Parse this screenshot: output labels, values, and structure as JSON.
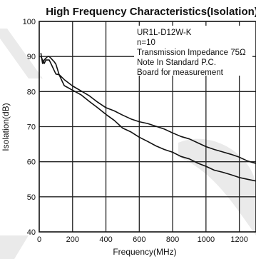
{
  "chart_data": {
    "type": "line",
    "title": "High Frequency Characteristics(Isolation)",
    "xlabel": "Frequency(MHz)",
    "ylabel": "Isolation(dB)",
    "xlim": [
      0,
      1300
    ],
    "ylim": [
      40,
      100
    ],
    "x_ticks": [
      0,
      200,
      400,
      600,
      800,
      1000,
      1200
    ],
    "y_ticks": [
      40,
      50,
      60,
      70,
      80,
      90,
      100
    ],
    "x_ticks_labels": [
      "0",
      "200",
      "400",
      "600",
      "800",
      "1000",
      "1200"
    ],
    "y_ticks_labels": [
      "40",
      "50",
      "60",
      "70",
      "80",
      "90",
      "100"
    ],
    "grid": true,
    "annotations": [
      "UR1L-D12W-K",
      "n=10",
      "Transmission Impedance 75Ω",
      "Note In Standard P.C.",
      "Board for measurement"
    ],
    "series": [
      {
        "x": [
          10,
          20,
          30,
          40,
          50,
          60,
          70,
          80,
          90,
          100,
          120,
          150,
          200,
          250,
          300,
          350,
          400,
          450,
          500,
          550,
          600,
          650,
          700,
          750,
          800,
          850,
          900,
          950,
          1000,
          1050,
          1100,
          1150,
          1200,
          1250,
          1300
        ],
        "y": [
          90,
          89,
          88,
          89,
          89,
          89,
          88,
          87,
          86,
          85,
          84.8,
          83.4,
          81.6,
          80.2,
          78.8,
          77,
          75.4,
          74.5,
          73.3,
          72.2,
          71.4,
          70.9,
          70.1,
          69.3,
          68.2,
          67.2,
          66.5,
          65.4,
          64.3,
          63.5,
          62.8,
          62.1,
          61.3,
          60.2,
          59.5
        ]
      },
      {
        "x": [
          10,
          20,
          30,
          40,
          50,
          60,
          70,
          80,
          90,
          100,
          120,
          150,
          200,
          250,
          300,
          350,
          400,
          450,
          500,
          550,
          600,
          650,
          700,
          750,
          800,
          850,
          900,
          950,
          1000,
          1050,
          1100,
          1150,
          1200,
          1250,
          1300
        ],
        "y": [
          91,
          88,
          89,
          89.5,
          90,
          90,
          89.5,
          89,
          88.5,
          87.8,
          84.7,
          81.7,
          80.4,
          79.1,
          77.2,
          75.4,
          73.5,
          71.8,
          69.6,
          68.5,
          67,
          65.8,
          64.5,
          63.5,
          62.7,
          61.5,
          60.8,
          59.6,
          58.7,
          57.6,
          57,
          56.3,
          55.5,
          55,
          54.5
        ]
      }
    ]
  }
}
